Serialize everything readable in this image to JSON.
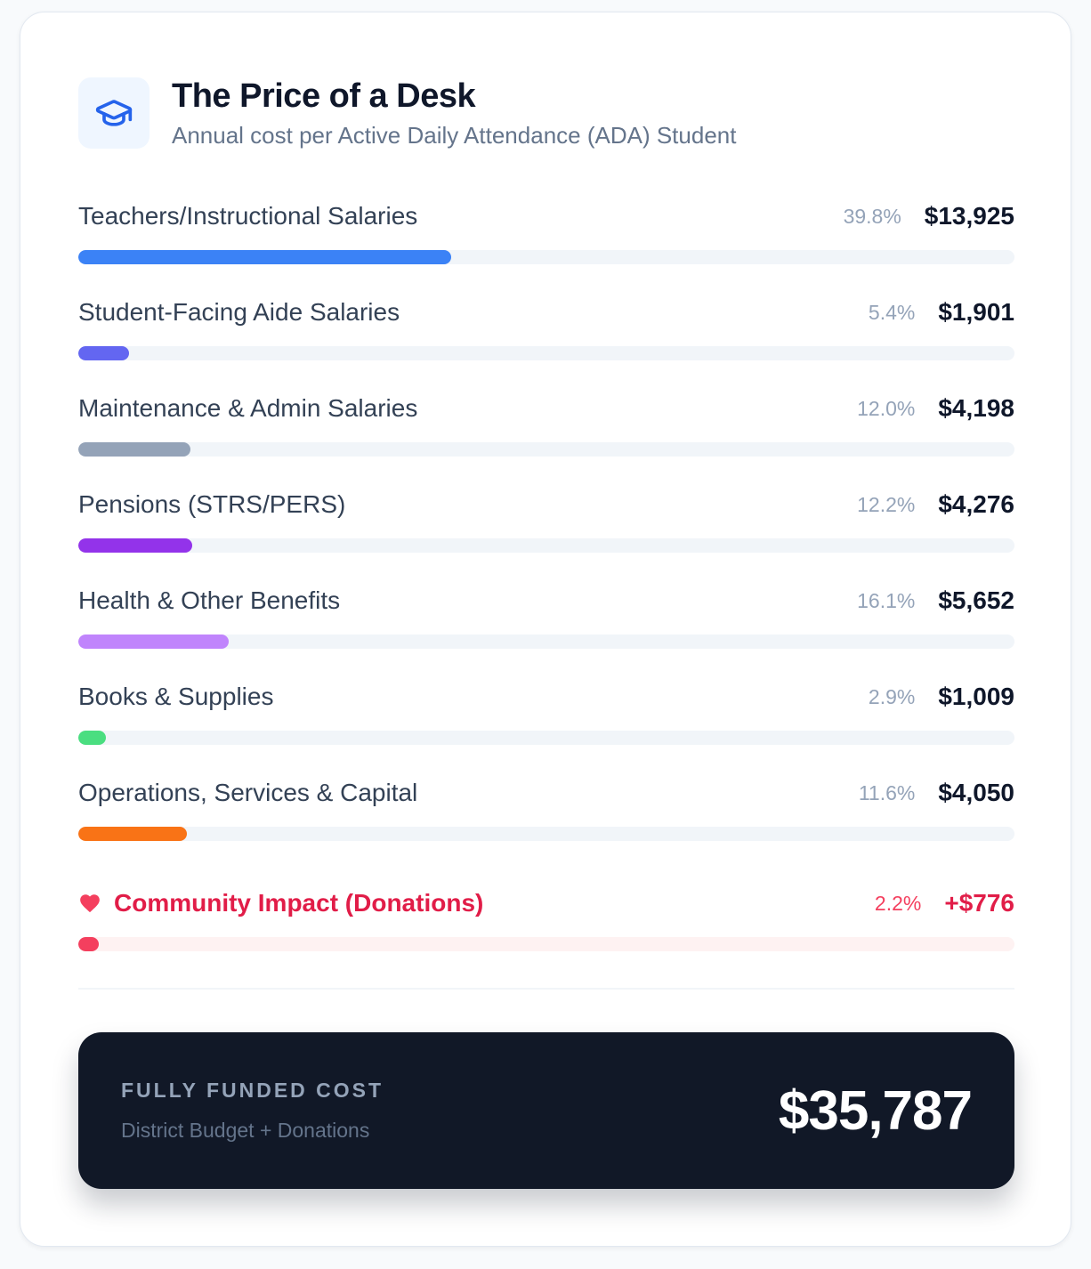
{
  "header": {
    "icon": "graduation-cap-icon",
    "title": "The Price of a Desk",
    "subtitle": "Annual cost per Active Daily Attendance (ADA) Student"
  },
  "chart_data": {
    "type": "bar",
    "orientation": "horizontal",
    "categories": [
      "Teachers/Instructional Salaries",
      "Student-Facing Aide Salaries",
      "Maintenance & Admin Salaries",
      "Pensions (STRS/PERS)",
      "Health & Other Benefits",
      "Books & Supplies",
      "Operations, Services & Capital",
      "Community Impact (Donations)"
    ],
    "values": [
      13925,
      1901,
      4198,
      4276,
      5652,
      1009,
      4050,
      776
    ],
    "percents": [
      39.8,
      5.4,
      12.0,
      12.2,
      16.1,
      2.9,
      11.6,
      2.2
    ],
    "percent_labels": [
      "39.8%",
      "5.4%",
      "12.0%",
      "12.2%",
      "16.1%",
      "2.9%",
      "11.6%",
      "2.2%"
    ],
    "value_labels": [
      "$13,925",
      "$1,901",
      "$4,198",
      "$4,276",
      "$5,652",
      "$1,009",
      "$4,050",
      "+$776"
    ],
    "colors": [
      "#3b82f6",
      "#6366f1",
      "#94a3b8",
      "#9333ea",
      "#c084fc",
      "#4ade80",
      "#f97316",
      "#f43f5e"
    ],
    "highlight_index": 7,
    "highlight_icon": "heart-icon"
  },
  "total": {
    "label": "FULLY FUNDED COST",
    "sublabel": "District Budget + Donations",
    "value": "$35,787"
  }
}
